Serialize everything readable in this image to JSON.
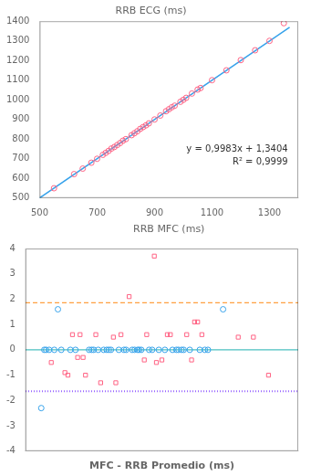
{
  "chart_data": [
    {
      "type": "scatter",
      "title": "RRB ECG (ms)",
      "x_label": "RRB MFC (ms)",
      "xlim": [
        500,
        1400
      ],
      "ylim": [
        500,
        1400
      ],
      "xticks": [
        500,
        700,
        900,
        1100,
        1300
      ],
      "yticks": [
        500,
        600,
        700,
        800,
        900,
        1000,
        1100,
        1200,
        1300,
        1400
      ],
      "grid": false,
      "annotations": [
        "y = 0,9983x + 1,3404",
        "R² = 0,9999"
      ],
      "series": [
        {
          "type": "line",
          "line_style": "solid",
          "x": [
            500,
            1370
          ],
          "values": [
            500.55,
            1369.5
          ]
        },
        {
          "type": "scatter",
          "marker": "circle",
          "x": [
            550,
            620,
            650,
            680,
            700,
            720,
            730,
            740,
            750,
            760,
            770,
            780,
            790,
            800,
            820,
            830,
            840,
            850,
            860,
            870,
            880,
            900,
            920,
            940,
            950,
            960,
            970,
            990,
            1000,
            1010,
            1030,
            1050,
            1060,
            1100,
            1150,
            1200,
            1250,
            1300,
            1350
          ],
          "values": [
            550,
            622,
            650,
            680,
            700,
            720,
            730,
            740,
            752,
            760,
            770,
            780,
            792,
            800,
            820,
            830,
            840,
            852,
            861,
            870,
            880,
            900,
            920,
            942,
            952,
            962,
            970,
            990,
            1000,
            1010,
            1032,
            1052,
            1060,
            1100,
            1150,
            1202,
            1252,
            1300,
            1390
          ]
        }
      ]
    },
    {
      "type": "scatter",
      "x_label": "MFC - RRB Promedio (ms)",
      "xlim": [
        500,
        1400
      ],
      "ylim": [
        -4,
        4
      ],
      "yticks": [
        -4,
        -3,
        -2,
        -1,
        0,
        1,
        2,
        3,
        4
      ],
      "grid": false,
      "tick_labels": "y",
      "hlines": [
        {
          "value": 0.0,
          "line_style": "solid"
        },
        {
          "value": 1.86,
          "line_style": "dashed"
        },
        {
          "value": -1.64,
          "line_style": "dotted"
        }
      ],
      "series": [
        {
          "type": "scatter",
          "marker": "circle",
          "x": [
            552,
            562,
            568,
            578,
            595,
            607,
            618,
            648,
            665,
            710,
            718,
            725,
            740,
            758,
            768,
            775,
            782,
            808,
            825,
            832,
            852,
            860,
            870,
            875,
            882,
            908,
            918,
            940,
            960,
            985,
            998,
            1005,
            1015,
            1022,
            1042,
            1075,
            1092,
            1102,
            1152
          ],
          "values": [
            -2.3,
            0.0,
            0.0,
            0.0,
            0.0,
            1.6,
            0.0,
            0.0,
            0.0,
            0.0,
            0.0,
            0.0,
            0.0,
            0.0,
            0.0,
            0.0,
            0.0,
            0.0,
            0.0,
            0.0,
            0.0,
            0.0,
            0.0,
            0.0,
            0.0,
            0.0,
            0.0,
            0.0,
            0.0,
            0.0,
            0.0,
            0.0,
            0.0,
            0.0,
            0.0,
            0.0,
            0.0,
            0.0,
            1.6
          ]
        },
        {
          "type": "scatter",
          "marker": "square",
          "x": [
            585,
            630,
            640,
            655,
            672,
            680,
            690,
            698,
            732,
            748,
            790,
            798,
            815,
            842,
            892,
            900,
            925,
            932,
            950,
            968,
            978,
            1032,
            1048,
            1058,
            1068,
            1082,
            1202,
            1252,
            1302
          ],
          "values": [
            -0.5,
            -0.9,
            -1.0,
            0.6,
            -0.3,
            0.6,
            -0.3,
            -1.0,
            0.6,
            -1.3,
            0.5,
            -1.3,
            0.6,
            2.1,
            -0.4,
            0.6,
            3.7,
            -0.5,
            -0.4,
            0.6,
            0.6,
            0.6,
            -0.4,
            1.1,
            1.1,
            0.6,
            0.5,
            0.5,
            -1.0
          ]
        }
      ]
    }
  ]
}
